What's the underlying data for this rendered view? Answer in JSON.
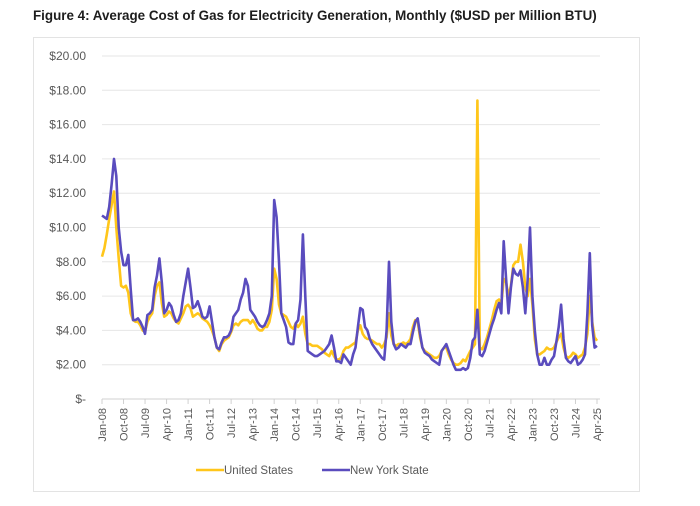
{
  "title": "Figure 4: Average Cost of Gas for Electricity Generation, Monthly ($USD per Million BTU)",
  "chart_data": {
    "type": "line",
    "title": "Figure 4: Average Cost of Gas for Electricity Generation, Monthly ($USD per Million BTU)",
    "xlabel": "",
    "ylabel": "",
    "x_start": "Jan-08",
    "x_end": "Apr-25",
    "x_frequency": "monthly",
    "ylim": [
      0,
      20
    ],
    "y_ticks": [
      0,
      2,
      4,
      6,
      8,
      10,
      12,
      14,
      16,
      18,
      20
    ],
    "y_tick_labels": [
      "$-",
      "$2.00",
      "$4.00",
      "$6.00",
      "$8.00",
      "$10.00",
      "$12.00",
      "$14.00",
      "$16.00",
      "$18.00",
      "$20.00"
    ],
    "x_tick_labels": [
      "Jan-08",
      "Oct-08",
      "Jul-09",
      "Apr-10",
      "Jan-11",
      "Oct-11",
      "Jul-12",
      "Apr-13",
      "Jan-14",
      "Oct-14",
      "Jul-15",
      "Apr-16",
      "Jan-17",
      "Oct-17",
      "Jul-18",
      "Apr-19",
      "Jan-20",
      "Oct-20",
      "Jul-21",
      "Apr-22",
      "Jan-23",
      "Oct-23",
      "Jul-24",
      "Apr-25"
    ],
    "grid": "horizontal",
    "legend": "bottom",
    "series": [
      {
        "name": "United States",
        "color": "#FFC61A",
        "values": [
          8.3,
          8.8,
          9.6,
          10.5,
          11.3,
          12.1,
          10.0,
          8.2,
          6.6,
          6.5,
          6.6,
          6.2,
          5.0,
          4.6,
          4.5,
          4.5,
          4.3,
          4.0,
          3.9,
          4.5,
          4.8,
          5.0,
          6.0,
          6.6,
          6.8,
          5.6,
          4.8,
          4.9,
          5.1,
          5.0,
          4.7,
          4.5,
          4.4,
          4.7,
          5.0,
          5.4,
          5.5,
          5.3,
          4.8,
          4.9,
          5.0,
          4.9,
          4.7,
          4.6,
          4.5,
          4.3,
          4.0,
          3.6,
          3.0,
          2.8,
          3.2,
          3.4,
          3.5,
          3.6,
          3.9,
          4.3,
          4.4,
          4.3,
          4.5,
          4.6,
          4.6,
          4.6,
          4.4,
          4.6,
          4.4,
          4.1,
          4.0,
          4.0,
          4.2,
          4.2,
          4.5,
          5.2,
          7.6,
          7.0,
          5.5,
          5.0,
          4.9,
          4.8,
          4.5,
          4.2,
          4.1,
          4.4,
          4.2,
          4.4,
          4.8,
          3.8,
          3.2,
          3.2,
          3.1,
          3.1,
          3.1,
          3.0,
          2.9,
          2.7,
          2.6,
          2.5,
          2.8,
          2.5,
          2.3,
          2.3,
          2.4,
          2.8,
          3.0,
          3.0,
          3.1,
          3.2,
          3.3,
          4.0,
          4.3,
          3.8,
          3.6,
          3.5,
          3.5,
          3.4,
          3.3,
          3.2,
          3.2,
          3.0,
          3.2,
          3.6,
          5.0,
          3.7,
          3.2,
          3.1,
          3.2,
          3.2,
          3.3,
          3.2,
          3.3,
          3.5,
          4.2,
          4.6,
          4.5,
          3.6,
          3.0,
          2.8,
          2.7,
          2.6,
          2.5,
          2.4,
          2.4,
          2.5,
          2.8,
          3.0,
          3.0,
          2.6,
          2.3,
          2.1,
          2.0,
          2.0,
          2.1,
          2.3,
          2.2,
          2.5,
          2.8,
          3.0,
          3.2,
          17.4,
          3.0,
          2.9,
          3.2,
          3.6,
          4.1,
          4.6,
          5.2,
          5.7,
          5.8,
          5.5,
          7.0,
          6.8,
          6.0,
          6.6,
          7.8,
          8.0,
          8.0,
          9.0,
          8.0,
          6.5,
          6.0,
          7.0,
          5.5,
          3.5,
          2.6,
          2.6,
          2.7,
          2.8,
          3.0,
          2.9,
          2.9,
          3.0,
          3.3,
          3.6,
          3.8,
          3.0,
          2.5,
          2.4,
          2.5,
          2.7,
          2.6,
          2.4,
          2.5,
          2.6,
          3.0,
          3.8,
          6.0,
          4.5,
          3.6,
          3.4
        ]
      },
      {
        "name": "New York State",
        "color": "#5A4CBE",
        "values": [
          10.7,
          10.6,
          10.5,
          11.2,
          12.5,
          14.0,
          13.0,
          10.0,
          8.6,
          7.8,
          7.8,
          8.4,
          6.4,
          4.6,
          4.6,
          4.7,
          4.5,
          4.2,
          3.8,
          4.9,
          5.0,
          5.2,
          6.5,
          7.2,
          8.2,
          6.8,
          5.0,
          5.2,
          5.6,
          5.4,
          4.9,
          4.5,
          4.6,
          5.0,
          6.0,
          6.8,
          7.6,
          6.5,
          5.3,
          5.4,
          5.7,
          5.3,
          4.8,
          4.7,
          4.8,
          5.4,
          4.5,
          3.6,
          3.0,
          2.9,
          3.3,
          3.6,
          3.6,
          3.7,
          4.0,
          4.8,
          5.0,
          5.2,
          5.8,
          6.2,
          7.0,
          6.6,
          5.2,
          5.0,
          4.8,
          4.5,
          4.3,
          4.2,
          4.3,
          4.6,
          5.0,
          6.0,
          11.6,
          10.6,
          8.0,
          5.0,
          4.6,
          4.2,
          3.3,
          3.2,
          3.2,
          4.4,
          4.6,
          5.8,
          9.6,
          6.0,
          2.8,
          2.7,
          2.6,
          2.5,
          2.5,
          2.6,
          2.7,
          2.8,
          3.0,
          3.2,
          3.7,
          3.0,
          2.2,
          2.2,
          2.1,
          2.6,
          2.4,
          2.2,
          2.0,
          2.6,
          3.0,
          4.2,
          5.3,
          5.2,
          4.2,
          4.0,
          3.5,
          3.2,
          3.0,
          2.8,
          2.6,
          2.4,
          2.3,
          4.0,
          8.0,
          4.5,
          3.2,
          2.9,
          3.0,
          3.2,
          3.1,
          3.0,
          3.2,
          3.2,
          3.9,
          4.5,
          4.7,
          3.8,
          3.0,
          2.7,
          2.6,
          2.5,
          2.3,
          2.2,
          2.1,
          2.0,
          2.8,
          3.0,
          3.2,
          2.8,
          2.4,
          2.0,
          1.7,
          1.7,
          1.7,
          1.8,
          1.7,
          1.8,
          2.4,
          3.4,
          3.6,
          5.2,
          2.6,
          2.5,
          2.8,
          3.3,
          3.8,
          4.3,
          4.7,
          5.2,
          5.6,
          5.0,
          9.2,
          7.0,
          5.0,
          6.5,
          7.6,
          7.3,
          7.2,
          7.5,
          6.5,
          5.0,
          7.0,
          10.0,
          6.0,
          4.0,
          2.6,
          2.0,
          2.0,
          2.4,
          2.0,
          2.0,
          2.3,
          2.5,
          3.3,
          4.2,
          5.5,
          3.5,
          2.4,
          2.2,
          2.1,
          2.3,
          2.5,
          2.0,
          2.1,
          2.3,
          2.6,
          5.0,
          8.5,
          4.3,
          3.0,
          3.1
        ]
      }
    ]
  }
}
